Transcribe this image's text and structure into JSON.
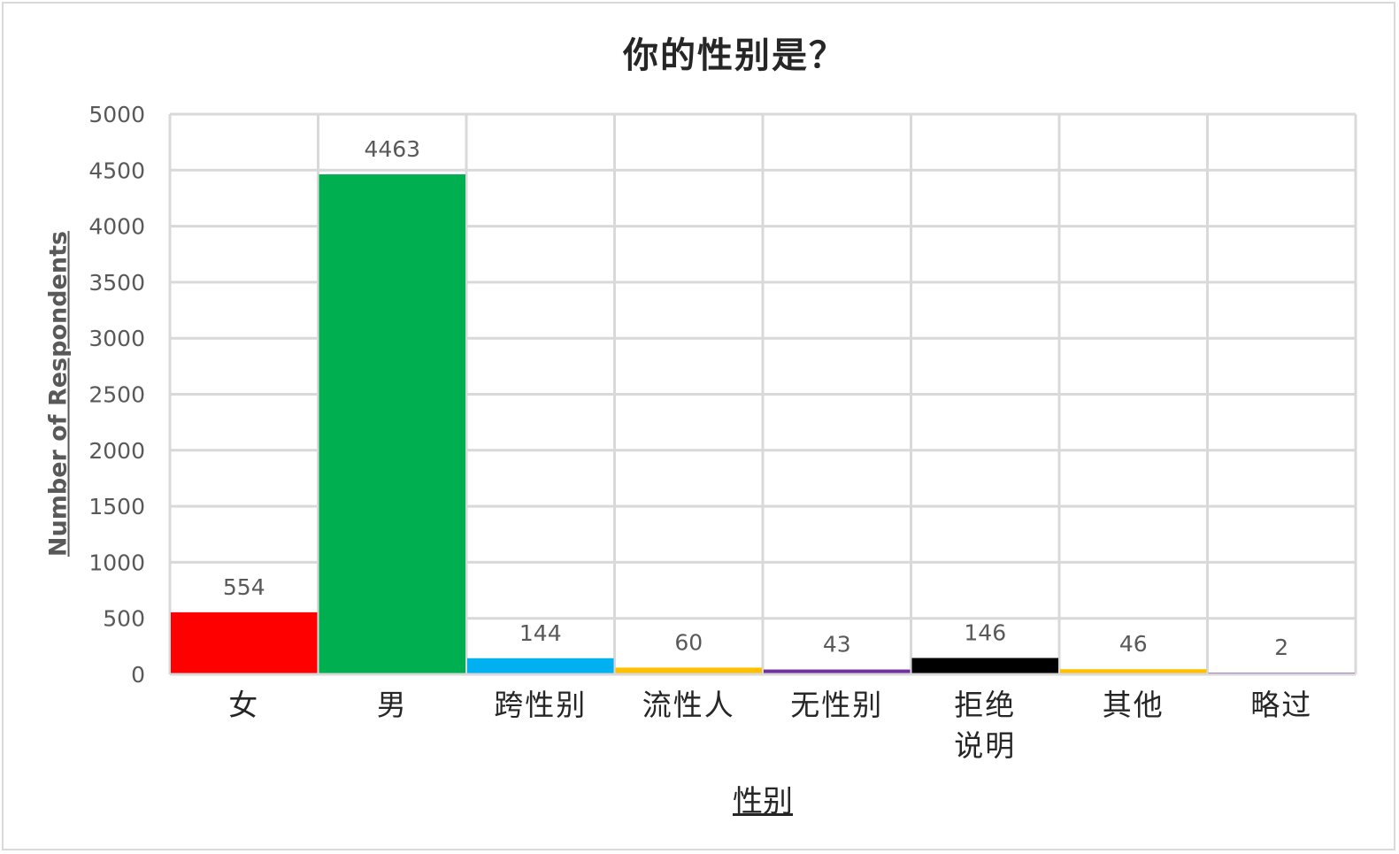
{
  "chart_data": {
    "type": "bar",
    "title": "你的性别是？",
    "xlabel": "性别",
    "ylabel": "Number of Respondents",
    "ylim": [
      0,
      5000
    ],
    "yticks": [
      0,
      500,
      1000,
      1500,
      2000,
      2500,
      3000,
      3500,
      4000,
      4500,
      5000
    ],
    "grid": true,
    "categories": [
      [
        "女"
      ],
      [
        "男"
      ],
      [
        "跨性别"
      ],
      [
        "流性人"
      ],
      [
        "无性别"
      ],
      [
        "拒绝",
        "说明"
      ],
      [
        "其他"
      ],
      [
        "略过"
      ]
    ],
    "values": [
      554,
      4463,
      144,
      60,
      43,
      146,
      46,
      2
    ],
    "data_labels": [
      "554",
      "4463",
      "144",
      "60",
      "43",
      "146",
      "46",
      "2"
    ],
    "colors": [
      "#ff0000",
      "#00b050",
      "#00b0f0",
      "#ffc000",
      "#7030a0",
      "#000000",
      "#ffc000",
      "#7030a0"
    ]
  }
}
